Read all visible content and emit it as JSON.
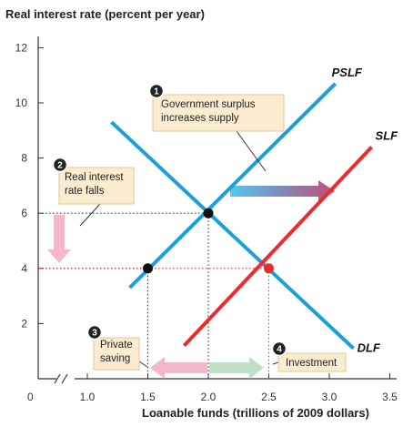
{
  "chart_data": {
    "type": "line",
    "ylabel": "Real interest rate (percent per year)",
    "xlabel": "Loanable funds (trillions of 2009 dollars)",
    "origin_label": "0",
    "xlim": [
      0.5,
      3.5
    ],
    "ylim": [
      0,
      12
    ],
    "x_ticks": [
      {
        "value": 1.0,
        "label": "1.0"
      },
      {
        "value": 1.5,
        "label": "1.5"
      },
      {
        "value": 2.0,
        "label": "2.0"
      },
      {
        "value": 2.5,
        "label": "2.5",
        "highlight": true
      },
      {
        "value": 3.0,
        "label": "3.0"
      },
      {
        "value": 3.5,
        "label": "3.5"
      }
    ],
    "y_ticks": [
      {
        "value": 2,
        "label": "2"
      },
      {
        "value": 4,
        "label": "4",
        "highlight": true
      },
      {
        "value": 6,
        "label": "6"
      },
      {
        "value": 8,
        "label": "8"
      },
      {
        "value": 10,
        "label": "10"
      },
      {
        "value": 12,
        "label": "12"
      }
    ],
    "series": [
      {
        "name": "DLF",
        "color": "#1aa0d8",
        "points": [
          [
            1.2,
            9.3
          ],
          [
            3.2,
            1.1
          ]
        ]
      },
      {
        "name": "PSLF",
        "color": "#1aa0d8",
        "points": [
          [
            1.35,
            3.3
          ],
          [
            3.05,
            10.7
          ]
        ]
      },
      {
        "name": "SLF",
        "color": "#ee2b2b",
        "points": [
          [
            1.8,
            1.2
          ],
          [
            3.35,
            8.4
          ]
        ]
      }
    ],
    "equilibria": [
      {
        "x": 2.0,
        "y": 6,
        "color": "#111111",
        "guide_color": "#333333"
      },
      {
        "x": 1.5,
        "y": 4,
        "color": "#111111",
        "guide_color": "#333333"
      },
      {
        "x": 2.5,
        "y": 4,
        "color": "#ee2b2b",
        "guide_color": "#ee2b2b"
      }
    ],
    "annotations": [
      {
        "number": "1",
        "lines": [
          "Government surplus",
          "increases supply"
        ]
      },
      {
        "number": "2",
        "lines": [
          "Real interest",
          "rate falls"
        ]
      },
      {
        "number": "3",
        "lines": [
          "Private",
          "saving"
        ]
      },
      {
        "number": "4",
        "lines": [
          "Investment"
        ]
      }
    ],
    "colors": {
      "demand": "#1aa0d8",
      "supply": "#ee2b2b",
      "callout_fill": "#fbecd0",
      "callout_border": "#e0c79a",
      "badge": "#222222",
      "arrow_pink": "#f4b8c8",
      "arrow_green": "#bfe0c4",
      "arrow_shift_start": "#5bc6ee",
      "arrow_shift_end": "#c64d70"
    }
  }
}
